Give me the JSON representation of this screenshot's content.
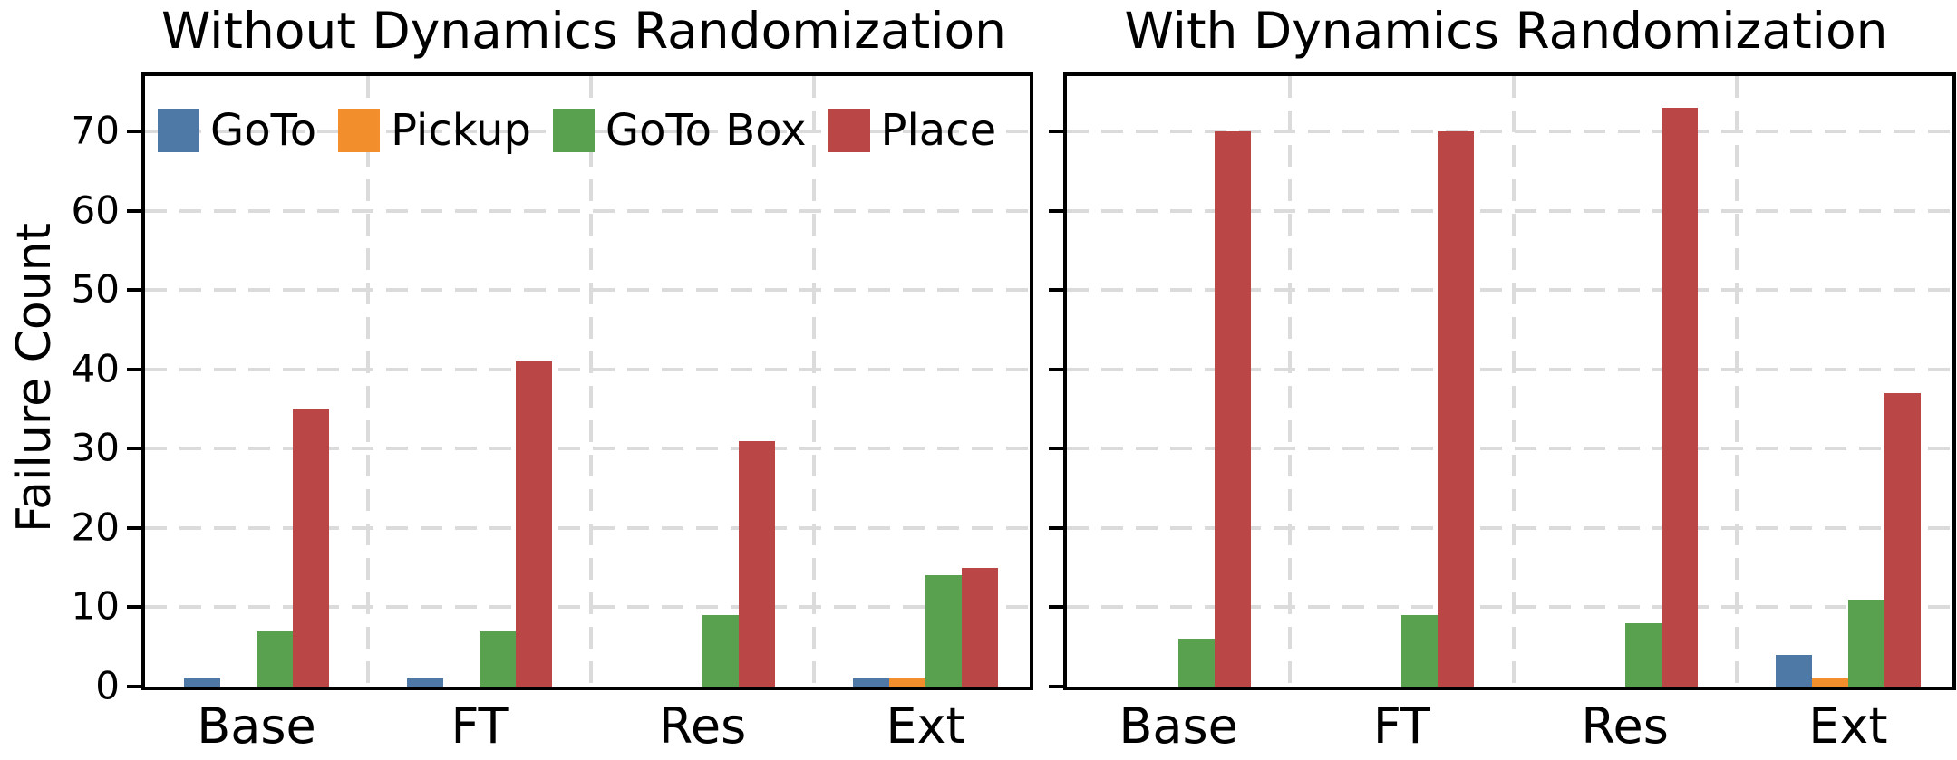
{
  "figure": {
    "ylabel": "Failure Count"
  },
  "legend": {
    "visible_in": "left-chart",
    "items": [
      {
        "label": "GoTo",
        "color": "#4E79A7"
      },
      {
        "label": "Pickup",
        "color": "#F28E2B"
      },
      {
        "label": "GoTo Box",
        "color": "#59A14F"
      },
      {
        "label": "Place",
        "color": "#BA4646"
      }
    ]
  },
  "colors": {
    "grid": "#DBDBDB",
    "spine": "#000000",
    "background": "#FFFFFF"
  },
  "chart_data": [
    {
      "type": "bar",
      "title": "Without Dynamics Randomization",
      "categories": [
        "Base",
        "FT",
        "Res",
        "Ext"
      ],
      "series": [
        {
          "name": "GoTo",
          "color": "#4E79A7",
          "values": [
            1,
            1,
            0,
            1
          ]
        },
        {
          "name": "Pickup",
          "color": "#F28E2B",
          "values": [
            0,
            0,
            0,
            1
          ]
        },
        {
          "name": "GoTo Box",
          "color": "#59A14F",
          "values": [
            7,
            7,
            9,
            14
          ]
        },
        {
          "name": "Place",
          "color": "#BA4646",
          "values": [
            35,
            41,
            31,
            15
          ]
        }
      ],
      "ylabel": "Failure Count",
      "ylim": [
        0,
        77
      ],
      "yticks": [
        0,
        10,
        20,
        30,
        40,
        50,
        60,
        70
      ],
      "y_tick_labels": true,
      "legend": true,
      "grid": true
    },
    {
      "type": "bar",
      "title": "With Dynamics Randomization",
      "categories": [
        "Base",
        "FT",
        "Res",
        "Ext"
      ],
      "series": [
        {
          "name": "GoTo",
          "color": "#4E79A7",
          "values": [
            0,
            0,
            0,
            4
          ]
        },
        {
          "name": "Pickup",
          "color": "#F28E2B",
          "values": [
            0,
            0,
            0,
            1
          ]
        },
        {
          "name": "GoTo Box",
          "color": "#59A14F",
          "values": [
            6,
            9,
            8,
            11
          ]
        },
        {
          "name": "Place",
          "color": "#BA4646",
          "values": [
            70,
            70,
            73,
            37
          ]
        }
      ],
      "ylabel": "",
      "ylim": [
        0,
        77
      ],
      "yticks": [
        0,
        10,
        20,
        30,
        40,
        50,
        60,
        70
      ],
      "y_tick_labels": false,
      "legend": false,
      "grid": true
    }
  ]
}
